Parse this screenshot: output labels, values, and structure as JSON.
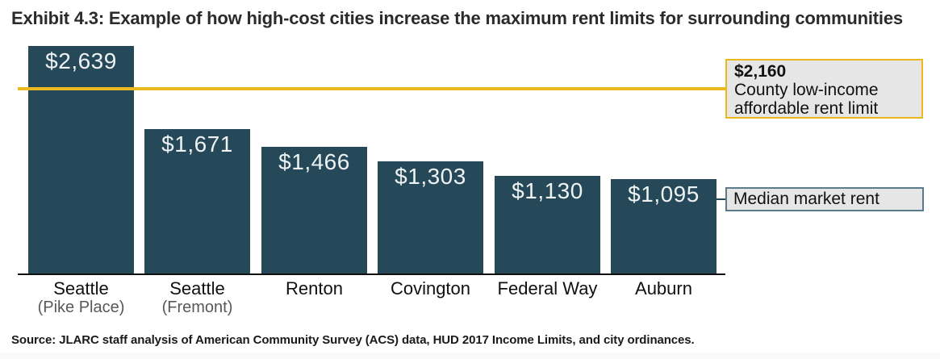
{
  "title": "Exhibit 4.3: Example of how high-cost cities increase the maximum rent limits for surrounding communities",
  "source": "Source: JLARC staff analysis of American Community Survey (ACS) data, HUD 2017 Income Limits, and city ordinances.",
  "colors": {
    "bar": "#26495A",
    "bar_value_text": "#EFF2F3",
    "limit_line": "#EAB81F",
    "annotation_fill": "#E6E6E6",
    "median_border": "#5A7B8A",
    "axis": "#101010",
    "sublabel_text": "#595959"
  },
  "annotations": {
    "limit": {
      "value_label": "$2,160",
      "line1": "County low-income",
      "line2": "affordable rent limit"
    },
    "median": {
      "label": "Median market rent"
    }
  },
  "chart_data": {
    "type": "bar",
    "title": "Exhibit 4.3: Example of how high-cost cities increase the maximum rent limits for surrounding communities",
    "categories": [
      "Seattle (Pike Place)",
      "Seattle (Fremont)",
      "Renton",
      "Covington",
      "Federal Way",
      "Auburn"
    ],
    "x_tick_labels": [
      [
        "Seattle",
        "(Pike Place)"
      ],
      [
        "Seattle",
        "(Fremont)"
      ],
      [
        "Renton"
      ],
      [
        "Covington"
      ],
      [
        "Federal Way"
      ],
      [
        "Auburn"
      ]
    ],
    "values": [
      2639,
      1671,
      1466,
      1303,
      1130,
      1095
    ],
    "value_labels": [
      "$2,639",
      "$1,671",
      "$1,466",
      "$1,303",
      "$1,130",
      "$1,095"
    ],
    "reference_line": {
      "value": 2160,
      "value_label": "$2,160",
      "label": "County low-income affordable rent limit"
    },
    "median_annotation": "Median market rent",
    "xlabel": "",
    "ylabel": "",
    "ylim": [
      0,
      2700
    ],
    "grid": false,
    "legend": false
  }
}
